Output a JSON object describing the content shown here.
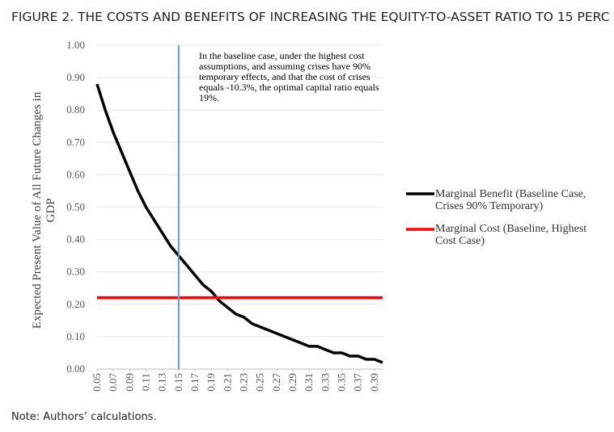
{
  "chart_data": {
    "type": "line",
    "title": "FIGURE 2. THE COSTS AND BENEFITS OF INCREASING THE EQUITY-TO-ASSET RATIO TO 15 PERC",
    "y_label": [
      "Expected Present Value of All Future Changes in",
      "GDP"
    ],
    "annotation": "In the baseline case, under the highest cost assumptions, and assuming crises have 90% temporary effects, and that the cost of crises equals -10.3%, the optimal capital ratio equals 19%.",
    "note": "Note: Authors’ calculations.",
    "x": [
      0.05,
      0.06,
      0.07,
      0.08,
      0.09,
      0.1,
      0.11,
      0.12,
      0.13,
      0.14,
      0.15,
      0.16,
      0.17,
      0.18,
      0.19,
      0.2,
      0.21,
      0.22,
      0.23,
      0.24,
      0.25,
      0.26,
      0.27,
      0.28,
      0.29,
      0.3,
      0.31,
      0.32,
      0.33,
      0.34,
      0.35,
      0.36,
      0.37,
      0.38,
      0.39,
      0.4
    ],
    "series": [
      {
        "name": "Marginal Benefit (Baseline Case, Crises 90% Temporary)",
        "color": "#000000",
        "values": [
          0.88,
          0.8,
          0.73,
          0.67,
          0.61,
          0.55,
          0.5,
          0.46,
          0.42,
          0.38,
          0.35,
          0.32,
          0.29,
          0.26,
          0.24,
          0.21,
          0.19,
          0.17,
          0.16,
          0.14,
          0.13,
          0.12,
          0.11,
          0.1,
          0.09,
          0.08,
          0.07,
          0.07,
          0.06,
          0.05,
          0.05,
          0.04,
          0.04,
          0.03,
          0.03,
          0.02
        ]
      },
      {
        "name": "Marginal Cost (Baseline, Highest Cost Case)",
        "color": "#ff0000",
        "values": [
          0.22,
          0.22,
          0.22,
          0.22,
          0.22,
          0.22,
          0.22,
          0.22,
          0.22,
          0.22,
          0.22,
          0.22,
          0.22,
          0.22,
          0.22,
          0.22,
          0.22,
          0.22,
          0.22,
          0.22,
          0.22,
          0.22,
          0.22,
          0.22,
          0.22,
          0.22,
          0.22,
          0.22,
          0.22,
          0.22,
          0.22,
          0.22,
          0.22,
          0.22,
          0.22,
          0.22
        ]
      }
    ],
    "vline": {
      "x": 0.15,
      "color": "#5b9bd5"
    },
    "xlim": [
      0.05,
      0.4
    ],
    "xticks": [
      {
        "value": 0.05,
        "label": "0.05"
      },
      {
        "value": 0.07,
        "label": "0.07"
      },
      {
        "value": 0.09,
        "label": "0.09"
      },
      {
        "value": 0.11,
        "label": "0.11"
      },
      {
        "value": 0.13,
        "label": "0.13"
      },
      {
        "value": 0.15,
        "label": "0.15"
      },
      {
        "value": 0.17,
        "label": "0.17"
      },
      {
        "value": 0.19,
        "label": "0.19"
      },
      {
        "value": 0.21,
        "label": "0.21"
      },
      {
        "value": 0.23,
        "label": "0.23"
      },
      {
        "value": 0.25,
        "label": "0.25"
      },
      {
        "value": 0.27,
        "label": "0.27"
      },
      {
        "value": 0.29,
        "label": "0.29"
      },
      {
        "value": 0.31,
        "label": "0.31"
      },
      {
        "value": 0.33,
        "label": "0.33"
      },
      {
        "value": 0.35,
        "label": "0.35"
      },
      {
        "value": 0.37,
        "label": "0.37"
      },
      {
        "value": 0.39,
        "label": "0.39"
      }
    ],
    "ylim": [
      0,
      1
    ],
    "yticks": [
      {
        "value": 0,
        "label": "0.00"
      },
      {
        "value": 0.1,
        "label": "0.10"
      },
      {
        "value": 0.2,
        "label": "0.20"
      },
      {
        "value": 0.3,
        "label": "0.30"
      },
      {
        "value": 0.4,
        "label": "0.40"
      },
      {
        "value": 0.5,
        "label": "0.50"
      },
      {
        "value": 0.6,
        "label": "0.60"
      },
      {
        "value": 0.7,
        "label": "0.70"
      },
      {
        "value": 0.8,
        "label": "0.80"
      },
      {
        "value": 0.9,
        "label": "0.90"
      },
      {
        "value": 1,
        "label": "1.00"
      }
    ],
    "grid": true,
    "legend": "right"
  }
}
